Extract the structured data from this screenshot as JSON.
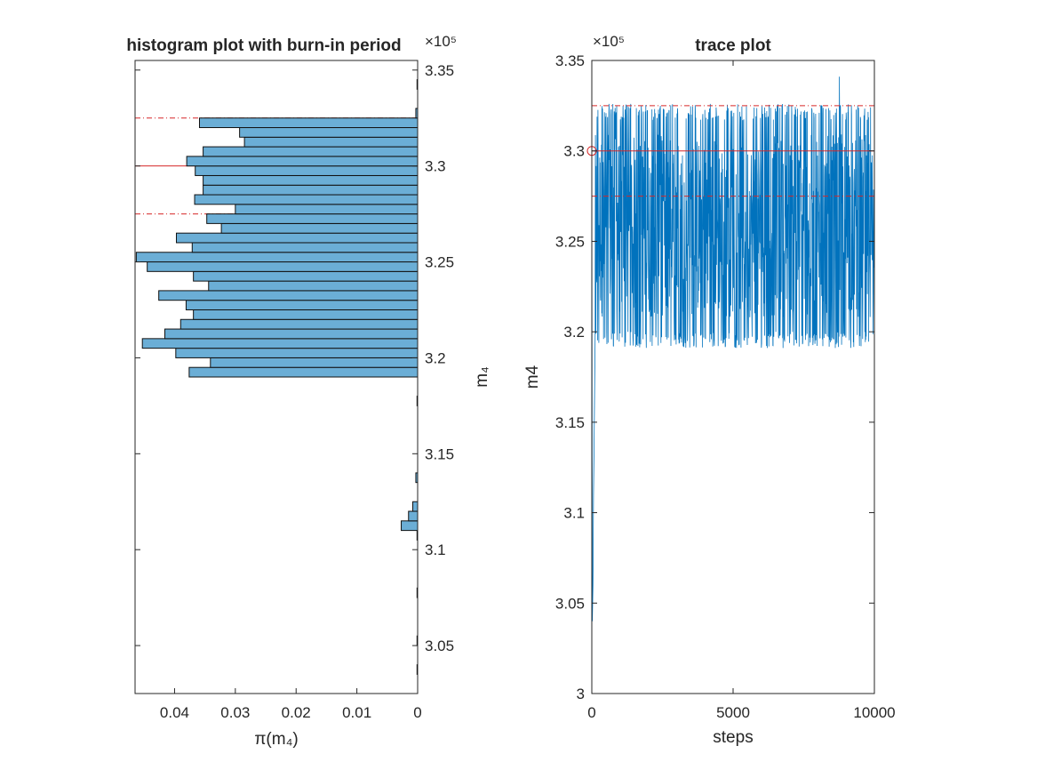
{
  "chart_data": [
    {
      "type": "bar",
      "orientation": "horizontal",
      "title": "histogram plot with burn-in period",
      "xlabel": "π(m₄)",
      "ylabel": "m₄",
      "xlim": [
        0,
        0.0465
      ],
      "x_direction": "reversed",
      "ylim": [
        302500,
        335500
      ],
      "y_exponent": "×10⁵",
      "x_ticks": [
        "0.04",
        "0.03",
        "0.02",
        "0.01",
        "0"
      ],
      "x_tick_values": [
        0.04,
        0.03,
        0.02,
        0.01,
        0
      ],
      "y_ticks": [
        "3.05",
        "3.1",
        "3.15",
        "3.2",
        "3.25",
        "3.3",
        "3.35"
      ],
      "y_tick_values": [
        305000,
        310000,
        315000,
        320000,
        325000,
        330000,
        335000
      ],
      "bin_width": 500,
      "bin_centers": [
        303750,
        305250,
        307750,
        310750,
        311250,
        311750,
        312250,
        313750,
        317750,
        319250,
        319750,
        320250,
        320750,
        321250,
        321750,
        322250,
        322750,
        323250,
        323750,
        324250,
        324750,
        325250,
        325750,
        326250,
        326750,
        327250,
        327750,
        328250,
        328750,
        329250,
        329750,
        330250,
        330750,
        331250,
        331750,
        332250,
        332750,
        334250
      ],
      "values": [
        0.0001,
        0.0001,
        0.0001,
        0.0001,
        0.0027,
        0.0015,
        0.0008,
        0.0003,
        0.0001,
        0.0376,
        0.0341,
        0.0398,
        0.0453,
        0.0416,
        0.039,
        0.0369,
        0.0381,
        0.0426,
        0.0344,
        0.0369,
        0.0445,
        0.0463,
        0.0371,
        0.0397,
        0.0323,
        0.0347,
        0.03,
        0.0367,
        0.0353,
        0.0353,
        0.0366,
        0.038,
        0.0353,
        0.0285,
        0.0293,
        0.0359,
        0.0003,
        0.0001
      ],
      "bar_color": "#6baed6",
      "reference_lines": [
        {
          "value": 330000,
          "style": "solid",
          "color": "#d62728"
        },
        {
          "value": 327500,
          "style": "dash-dot",
          "color": "#d62728"
        },
        {
          "value": 332500,
          "style": "dash-dot",
          "color": "#d62728"
        }
      ],
      "grid": false
    },
    {
      "type": "line",
      "title": "trace plot",
      "xlabel": "steps",
      "ylabel": "m4",
      "xlim": [
        0,
        10000
      ],
      "ylim": [
        300000,
        335000
      ],
      "y_exponent": "×10⁵",
      "x_ticks": [
        "0",
        "5000",
        "10000"
      ],
      "x_tick_values": [
        0,
        5000,
        10000
      ],
      "y_ticks": [
        "3",
        "3.05",
        "3.1",
        "3.15",
        "3.2",
        "3.25",
        "3.3",
        "3.35"
      ],
      "y_tick_values": [
        300000,
        305000,
        310000,
        315000,
        320000,
        325000,
        330000,
        335000
      ],
      "series_color": "#0072bd",
      "n_steps": 10000,
      "burn_in": [
        {
          "x": 0,
          "y": 330000
        },
        {
          "x": 20,
          "y": 304000
        },
        {
          "x": 40,
          "y": 306000
        },
        {
          "x": 60,
          "y": 311000
        },
        {
          "x": 80,
          "y": 313500
        },
        {
          "x": 100,
          "y": 317000
        },
        {
          "x": 120,
          "y": 320000
        }
      ],
      "stationary_range": [
        319100,
        332600
      ],
      "peak": {
        "x": 8760,
        "y": 334100
      },
      "start_marker": {
        "x": 0,
        "y": 330000,
        "color": "#d62728"
      },
      "reference_lines": [
        {
          "value": 330000,
          "style": "solid",
          "color": "#d62728"
        },
        {
          "value": 327500,
          "style": "dash-dot",
          "color": "#d62728"
        },
        {
          "value": 332500,
          "style": "dash-dot",
          "color": "#d62728"
        }
      ],
      "grid": false
    }
  ]
}
